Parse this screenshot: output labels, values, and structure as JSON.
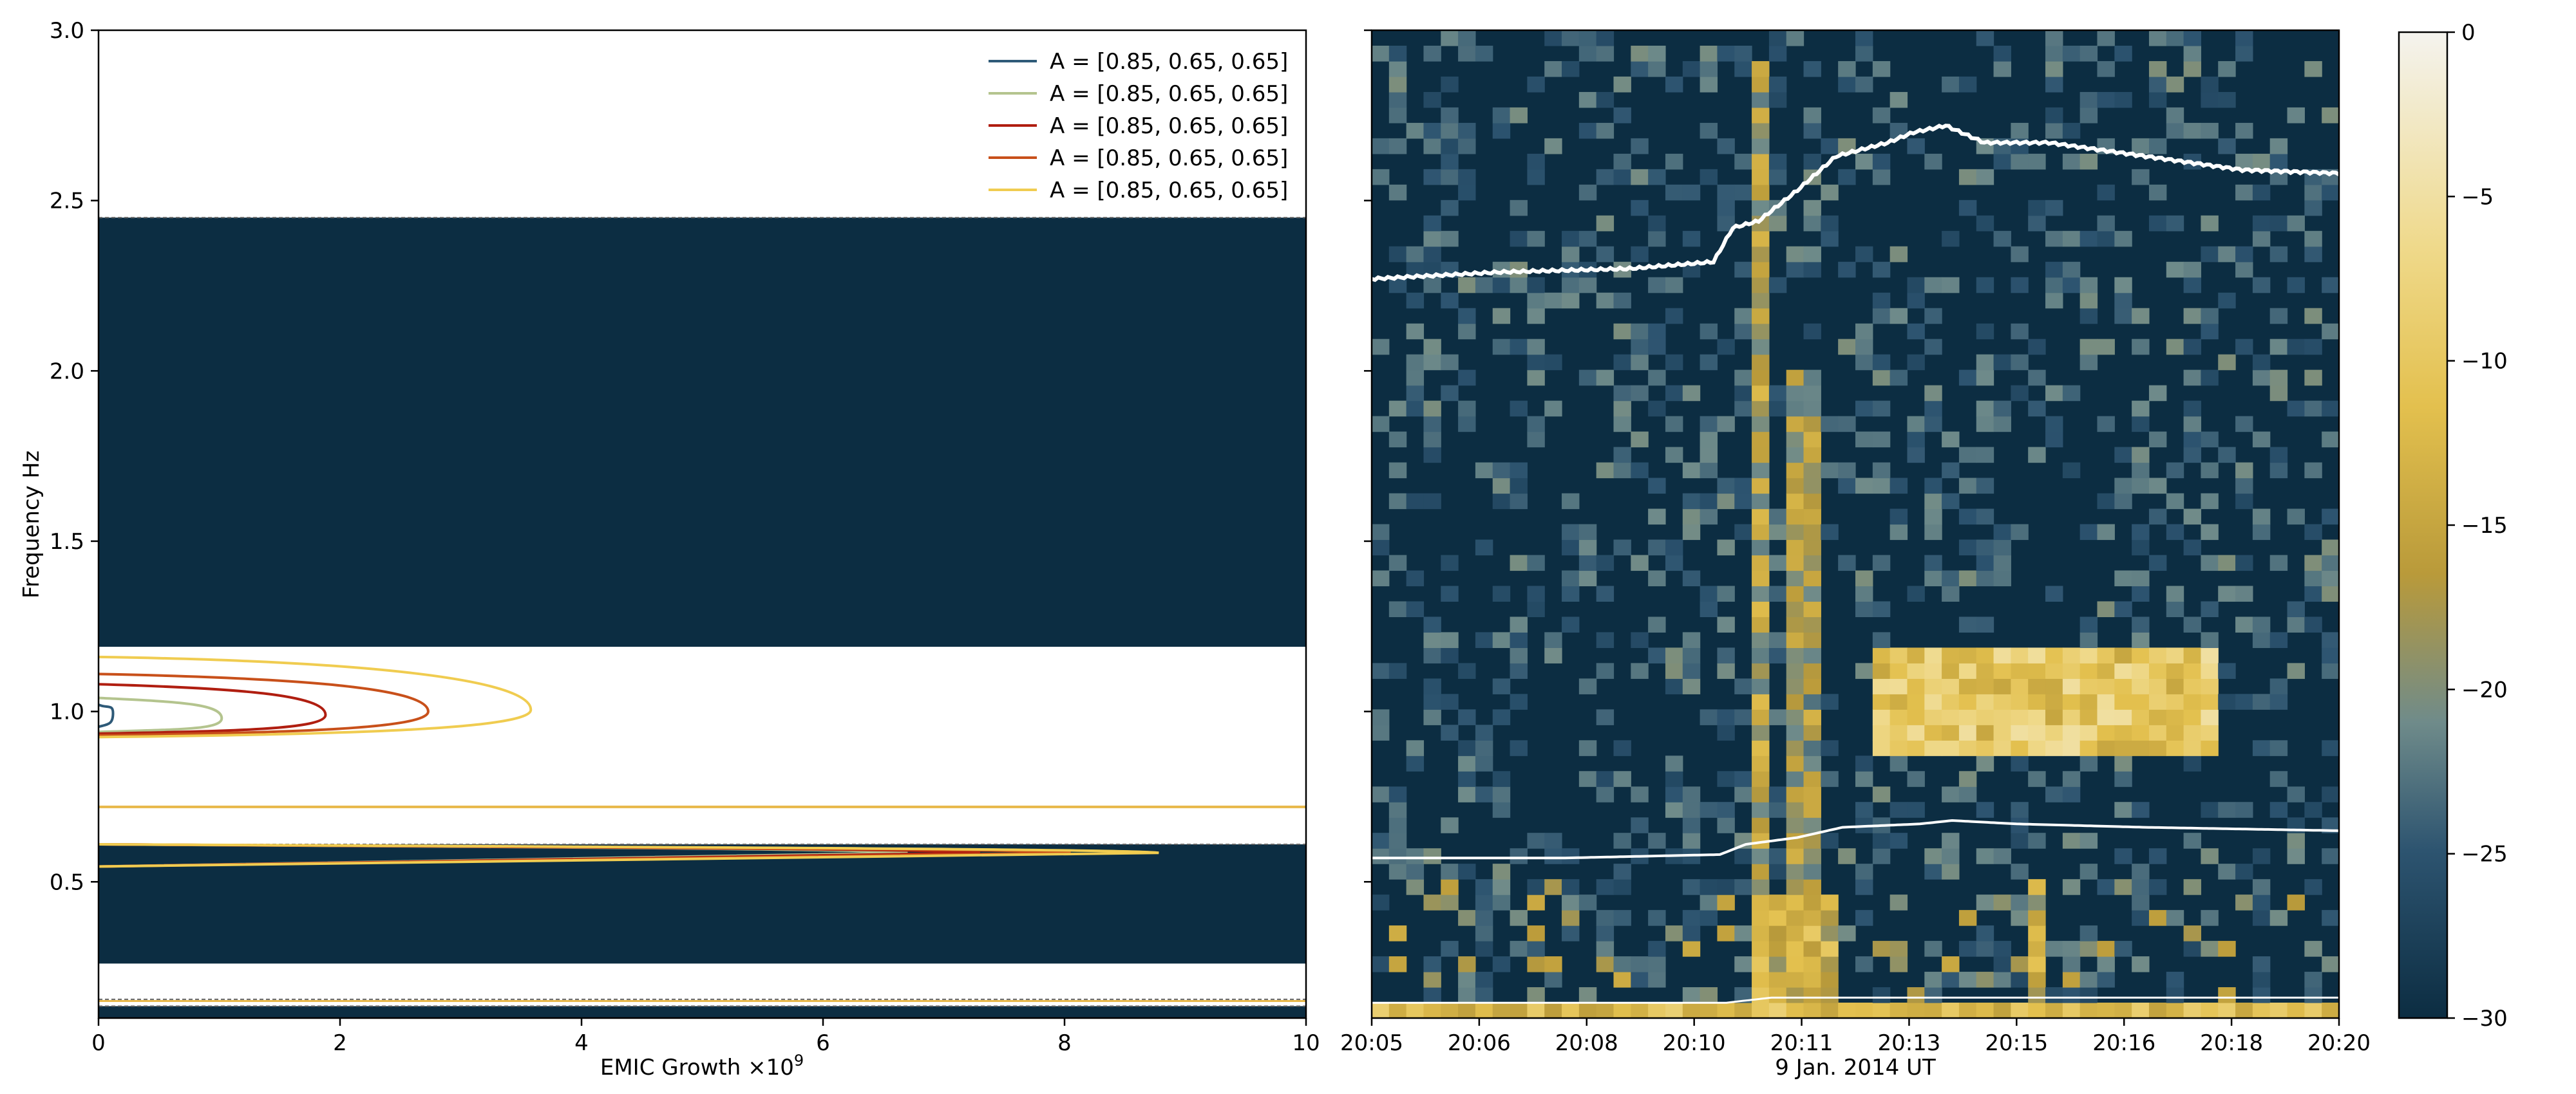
{
  "chart_data": [
    {
      "type": "line",
      "panel": "left",
      "xlabel": "EMIC Growth ×10",
      "xlabel_exponent": "9",
      "ylabel": "Frequency Hz",
      "xlim": [
        0,
        10
      ],
      "ylim": [
        0.1,
        3.0
      ],
      "xticks": [
        0,
        2,
        4,
        6,
        8,
        10
      ],
      "xtick_labels": [
        "0",
        "2",
        "4",
        "6",
        "8",
        "10"
      ],
      "yticks": [
        0.5,
        1.0,
        1.5,
        2.0,
        2.5,
        3.0
      ],
      "ytick_labels": [
        "0.5",
        "1.0",
        "1.5",
        "2.0",
        "2.5",
        "3.0"
      ],
      "legend_position": "top-right",
      "shaded_bands": [
        {
          "from": 1.19,
          "to": 2.45,
          "color": "#0c2d42"
        },
        {
          "from": 0.26,
          "to": 0.61,
          "color": "#0c2d42"
        },
        {
          "from": 0.1,
          "to": 0.135,
          "color": "#0c2d42"
        }
      ],
      "band_edges_dashed": [
        2.45,
        0.61,
        0.155,
        0.135
      ],
      "ion_line": {
        "y": 0.72,
        "color": "#e8b84a"
      },
      "series": [
        {
          "name": "A = [0.85, 0.65, 0.65]",
          "color": "#2e5a78",
          "peak_upper": 0.12,
          "f_upper": [
            0.955,
            0.995,
            1.02
          ],
          "peak_lower": 0.0,
          "f_lower_peak": 0.585
        },
        {
          "name": "A = [0.85, 0.65, 0.65]",
          "color": "#b4c48e",
          "peak_upper": 1.02,
          "f_upper": [
            0.94,
            0.98,
            1.04
          ],
          "peak_lower": 6.7,
          "f_lower_peak": 0.585
        },
        {
          "name": "A = [0.85, 0.65, 0.65]",
          "color": "#b01e10",
          "peak_upper": 1.88,
          "f_upper": [
            0.935,
            0.99,
            1.08
          ],
          "peak_lower": 7.3,
          "f_lower_peak": 0.585
        },
        {
          "name": "A = [0.85, 0.65, 0.65]",
          "color": "#c8501a",
          "peak_upper": 2.73,
          "f_upper": [
            0.93,
            1.0,
            1.11
          ],
          "peak_lower": 8.05,
          "f_lower_peak": 0.585
        },
        {
          "name": "A = [0.85, 0.65, 0.65]",
          "color": "#f0cc50",
          "peak_upper": 3.58,
          "f_upper": [
            0.925,
            1.005,
            1.16
          ],
          "peak_lower": 8.78,
          "f_lower_peak": 0.585
        }
      ]
    },
    {
      "type": "heatmap",
      "panel": "right",
      "xlabel": "9 Jan. 2014 UT",
      "xlim_minutes": [
        0,
        15
      ],
      "xtick_labels": [
        "20:05",
        "20:06",
        "20:08",
        "20:10",
        "20:11",
        "20:13",
        "20:15",
        "20:16",
        "20:18",
        "20:20"
      ],
      "ylim": [
        0.1,
        3.0
      ],
      "colorscale_range": [
        -30,
        0
      ],
      "colorbar_ticks": [
        0,
        -5,
        -10,
        -15,
        -20,
        -25,
        -30
      ],
      "colorbar_tick_labels": [
        "0",
        "−5",
        "−10",
        "−15",
        "−20",
        "−25",
        "−30"
      ],
      "upper_white_line": [
        [
          0,
          2.27
        ],
        [
          2,
          2.29
        ],
        [
          4,
          2.3
        ],
        [
          5.3,
          2.32
        ],
        [
          5.6,
          2.42
        ],
        [
          6.0,
          2.44
        ],
        [
          6.6,
          2.53
        ],
        [
          7.2,
          2.63
        ],
        [
          8.0,
          2.67
        ],
        [
          8.4,
          2.7
        ],
        [
          8.9,
          2.72
        ],
        [
          9.5,
          2.67
        ],
        [
          10.5,
          2.67
        ],
        [
          12,
          2.63
        ],
        [
          13.5,
          2.59
        ],
        [
          15,
          2.58
        ]
      ],
      "lower_white_line": [
        [
          0,
          0.57
        ],
        [
          3,
          0.57
        ],
        [
          5.4,
          0.58
        ],
        [
          5.8,
          0.61
        ],
        [
          6.6,
          0.63
        ],
        [
          7.3,
          0.66
        ],
        [
          8.5,
          0.67
        ],
        [
          9.0,
          0.68
        ],
        [
          10,
          0.67
        ],
        [
          12,
          0.66
        ],
        [
          15,
          0.65
        ]
      ],
      "enhancements": [
        {
          "t_from": 5.85,
          "t_to": 6.12,
          "f_from": 0.1,
          "f_to": 2.9,
          "level": -17
        },
        {
          "t_from": 6.55,
          "t_to": 6.85,
          "f_from": 0.2,
          "f_to": 2.0,
          "level": -18
        },
        {
          "t_from": 7.9,
          "t_to": 13.1,
          "f_from": 0.85,
          "f_to": 1.2,
          "level": -10
        },
        {
          "t_from": 5.85,
          "t_to": 7.1,
          "f_from": 0.1,
          "f_to": 0.45,
          "level": -14
        },
        {
          "t_from": 10.2,
          "t_to": 10.45,
          "f_from": 0.1,
          "f_to": 0.5,
          "level": -15
        }
      ]
    }
  ]
}
